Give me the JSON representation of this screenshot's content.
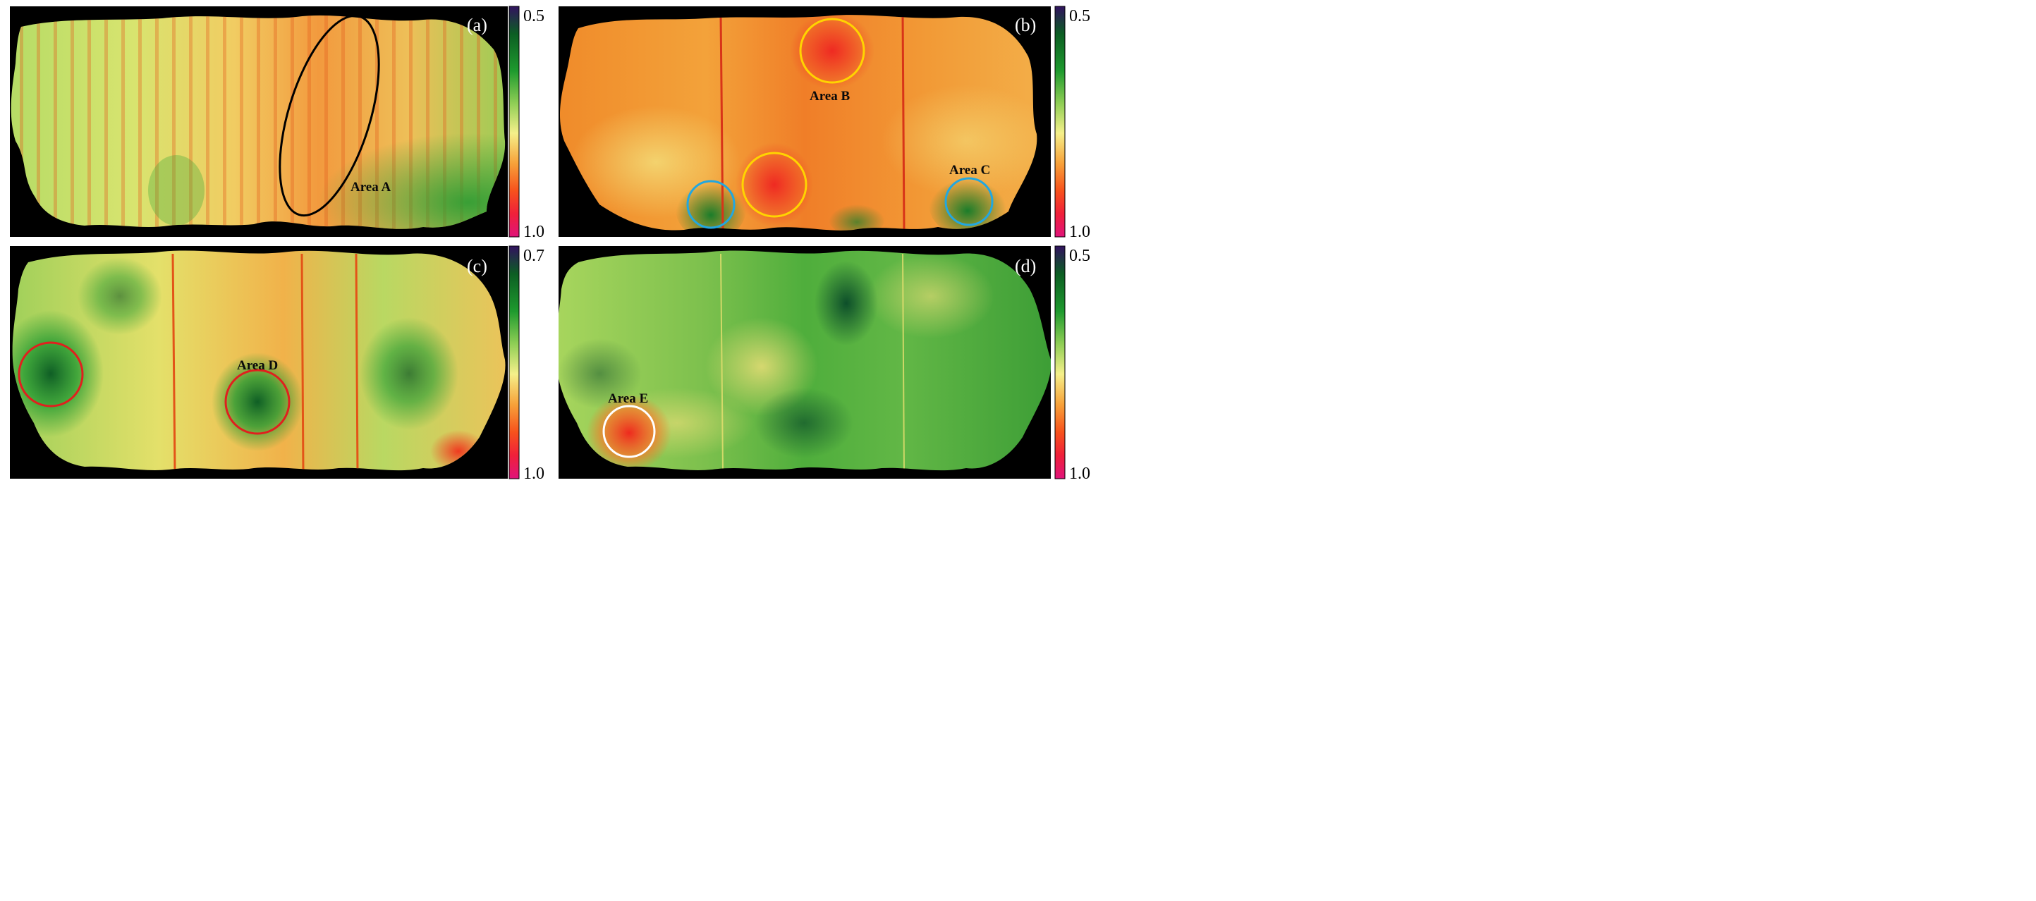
{
  "figure": {
    "panels": [
      {
        "id": "a",
        "label": "(a)",
        "colorbar": {
          "top": "0.5",
          "bottom": "1.0"
        },
        "annotations": [
          {
            "label": "Area A",
            "shape": "ellipse",
            "color": "#000000"
          }
        ]
      },
      {
        "id": "b",
        "label": "(b)",
        "colorbar": {
          "top": "0.5",
          "bottom": "1.0"
        },
        "annotations": [
          {
            "label": "Area B",
            "shape": "circle",
            "color": "#ffd400"
          },
          {
            "label": "Area C",
            "shape": "circle",
            "color": "#22a7e0"
          }
        ]
      },
      {
        "id": "c",
        "label": "(c)",
        "colorbar": {
          "top": "0.7",
          "bottom": "1.0"
        },
        "annotations": [
          {
            "label": "Area D",
            "shape": "circle",
            "color": "#e0201e"
          }
        ]
      },
      {
        "id": "d",
        "label": "(d)",
        "colorbar": {
          "top": "0.5",
          "bottom": "1.0"
        },
        "annotations": [
          {
            "label": "Area E",
            "shape": "circle",
            "color": "#ffffff"
          }
        ]
      }
    ],
    "colormap": [
      "#31125f",
      "#0c5e23",
      "#1e9a2e",
      "#8fce55",
      "#f5f08a",
      "#f7a23a",
      "#f7521c",
      "#f0203a",
      "#e0147a"
    ]
  }
}
